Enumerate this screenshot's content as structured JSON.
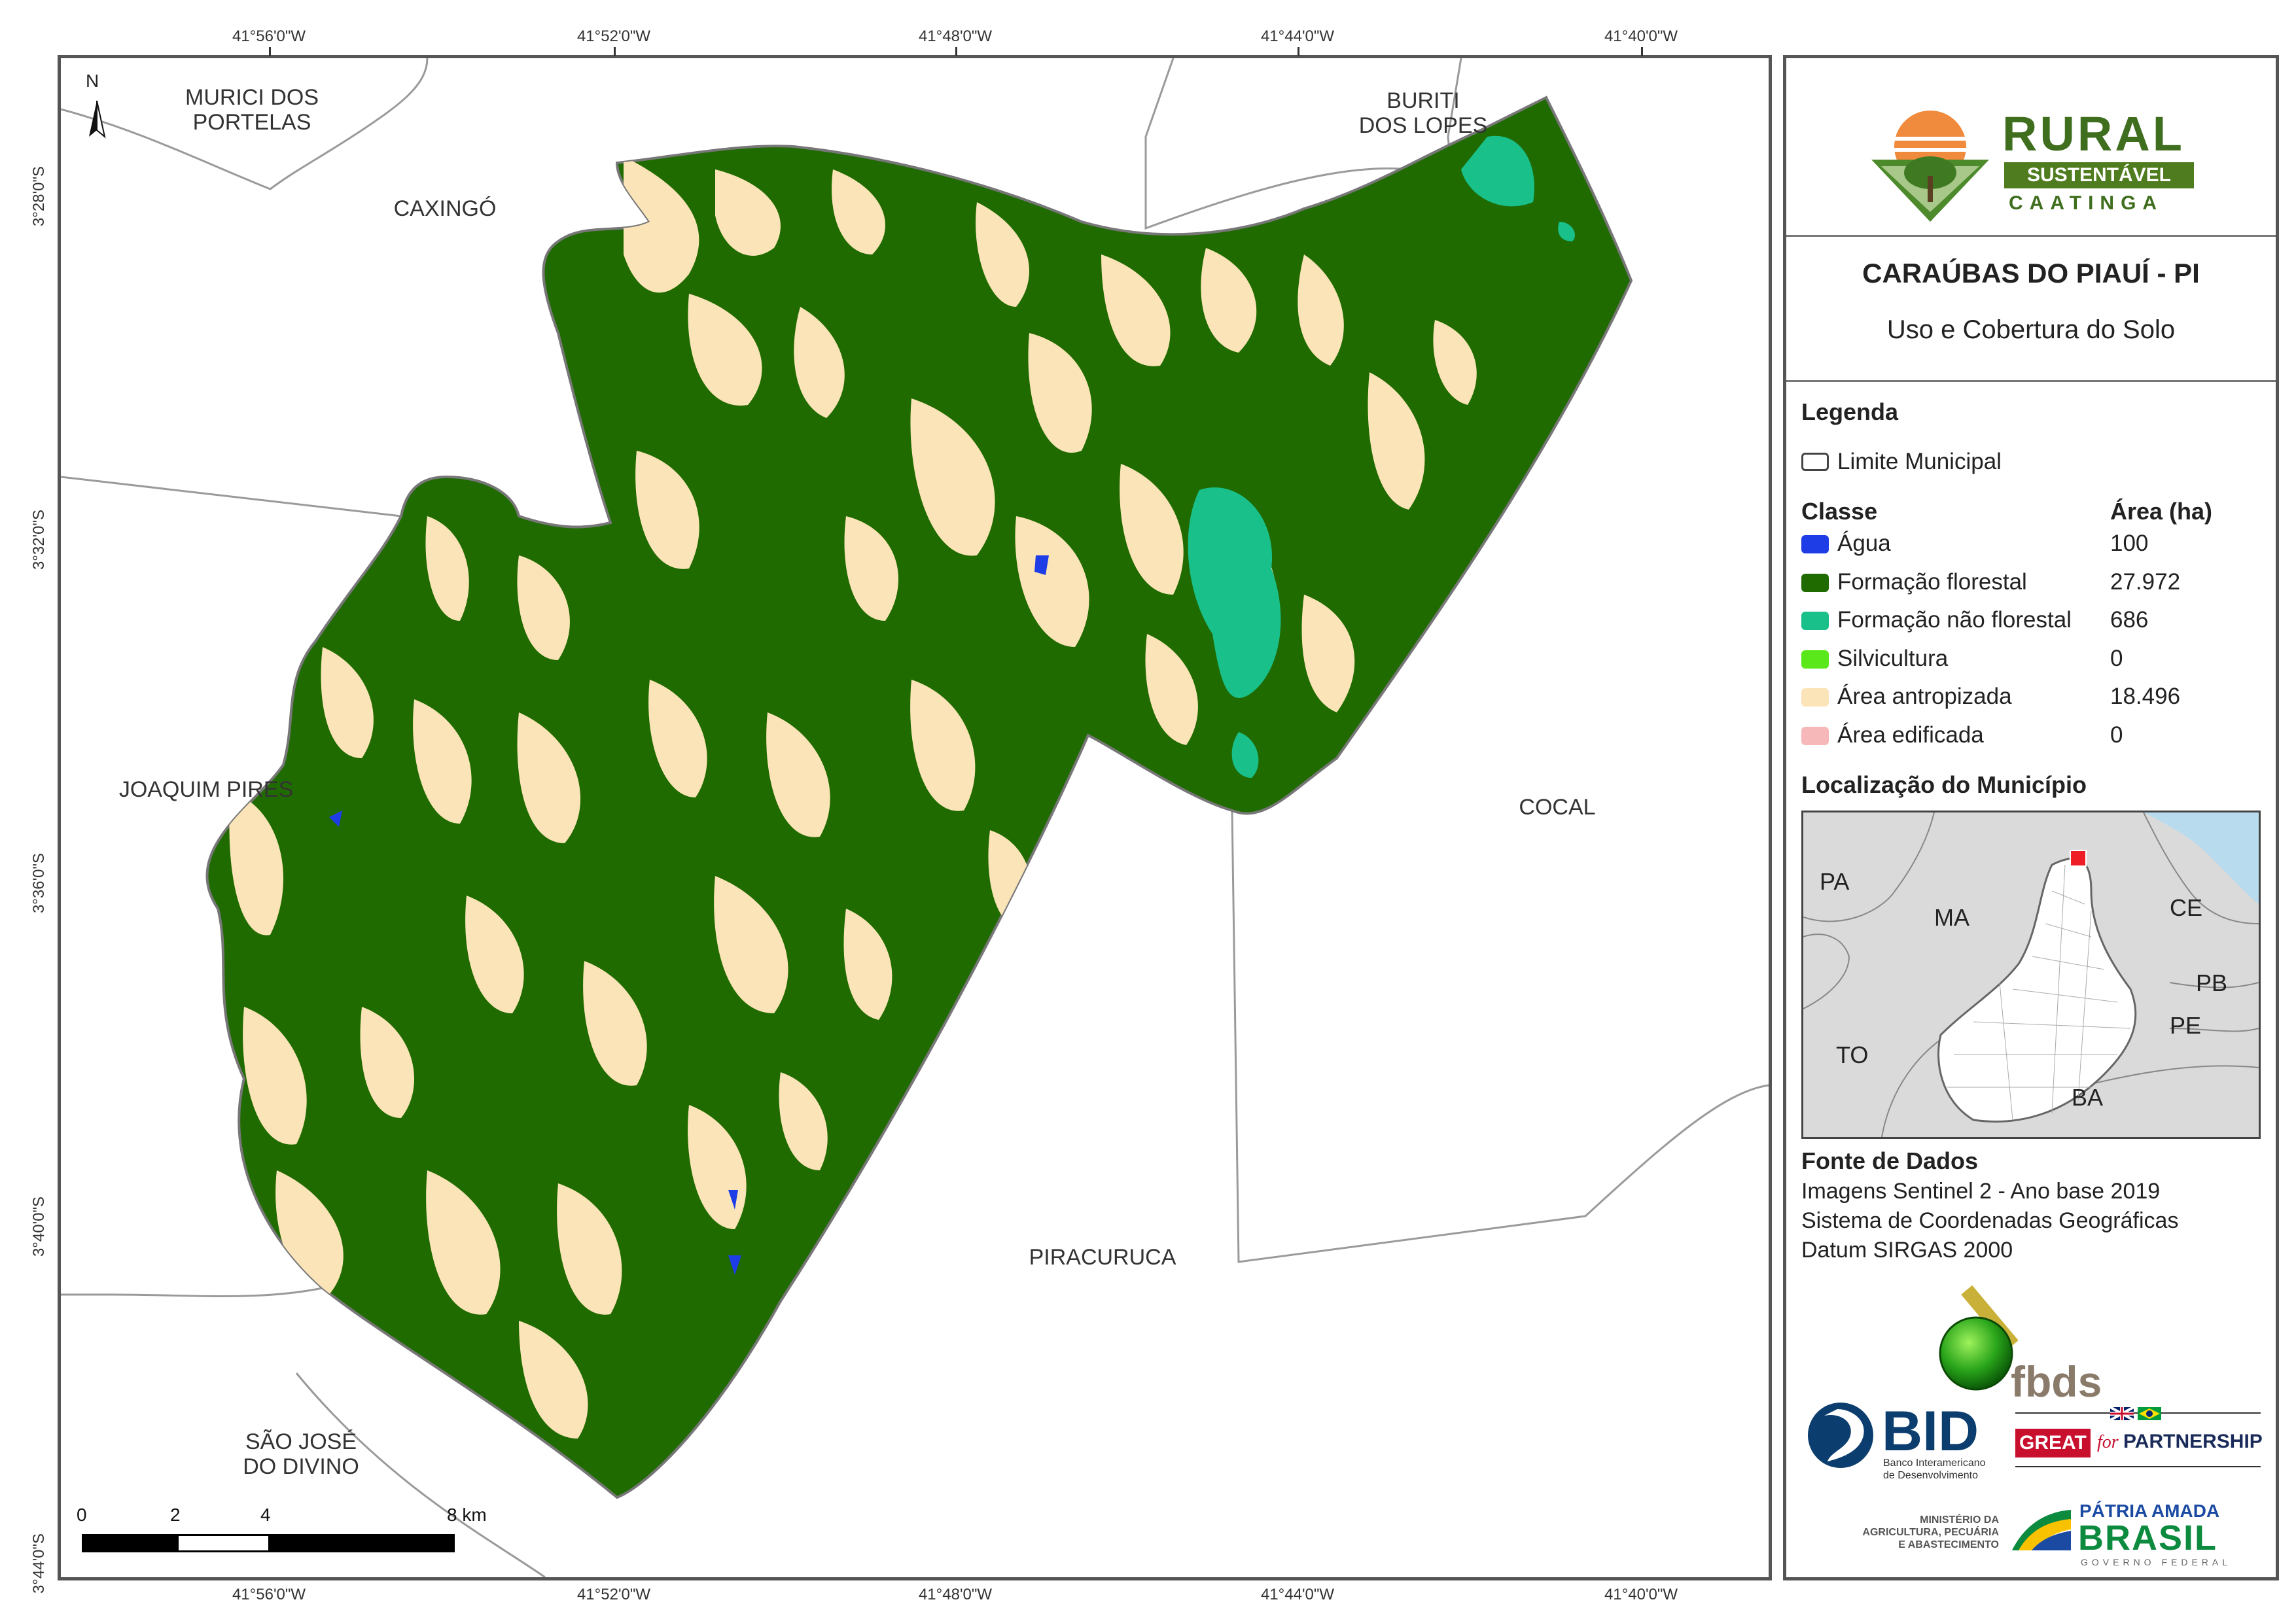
{
  "map": {
    "top_coords": [
      "41°56'0\"W",
      "41°52'0\"W",
      "41°48'0\"W",
      "41°44'0\"W",
      "41°40'0\"W"
    ],
    "bottom_coords": [
      "41°56'0\"W",
      "41°52'0\"W",
      "41°48'0\"W",
      "41°44'0\"W",
      "41°40'0\"W"
    ],
    "left_coords": [
      "3°28'0\"S",
      "3°32'0\"S",
      "3°36'0\"S",
      "3°40'0\"S",
      "3°44'0\"S"
    ],
    "north_label": "N",
    "regions": {
      "murici": [
        "MURICI DOS",
        "PORTELAS"
      ],
      "caxingo": "CAXINGÓ",
      "buriti": [
        "BURITI",
        "DOS LOPES"
      ],
      "joaquim": "JOAQUIM PIRES",
      "cocal": "COCAL",
      "piracuruca": "PIRACURUCA",
      "sao_jose": [
        "SÃO JOSÉ",
        "DO DIVINO"
      ]
    },
    "scale": {
      "labels": [
        "0",
        "2",
        "4",
        "8 km"
      ]
    }
  },
  "panel": {
    "logo_rural": {
      "line1": "RURAL",
      "line2": "SUSTENTÁVEL",
      "line3": "CAATINGA"
    },
    "title": "CARAÚBAS DO PIAUÍ - PI",
    "subtitle": "Uso e Cobertura do Solo",
    "legend": {
      "heading": "Legenda",
      "boundary": "Limite Municipal",
      "class_heading": "Classe",
      "area_heading": "Área (ha)",
      "classes": [
        {
          "name": "Água",
          "area": "100",
          "color": "#1e3de6"
        },
        {
          "name": "Formação florestal",
          "area": "27.972",
          "color": "#1f6b00"
        },
        {
          "name": "Formação não florestal",
          "area": "686",
          "color": "#19c08a"
        },
        {
          "name": "Silvicultura",
          "area": "0",
          "color": "#5be81a"
        },
        {
          "name": "Área antropizada",
          "area": "18.496",
          "color": "#fbe4b8"
        },
        {
          "name": "Área edificada",
          "area": "0",
          "color": "#f6b8b8"
        }
      ]
    },
    "location": {
      "heading": "Localização do Município",
      "states": [
        "PA",
        "MA",
        "CE",
        "PB",
        "PE",
        "TO",
        "BA"
      ]
    },
    "source": {
      "heading": "Fonte de Dados",
      "lines": [
        "Imagens Sentinel 2 - Ano base 2019",
        "Sistema de Coordenadas Geográficas",
        "Datum SIRGAS 2000"
      ]
    },
    "logos": {
      "fbds": "fbds",
      "bid": "BID",
      "bid_sub": [
        "Banco Interamericano",
        "de Desenvolvimento"
      ],
      "great": "GREAT",
      "great_for": "for",
      "partnership": "PARTNERSHIP",
      "ministry": [
        "MINISTÉRIO DA",
        "AGRICULTURA, PECUÁRIA",
        "E ABASTECIMENTO"
      ],
      "patria": "PÁTRIA AMADA",
      "brasil": "BRASIL",
      "governo": "GOVERNO FEDERAL"
    }
  }
}
